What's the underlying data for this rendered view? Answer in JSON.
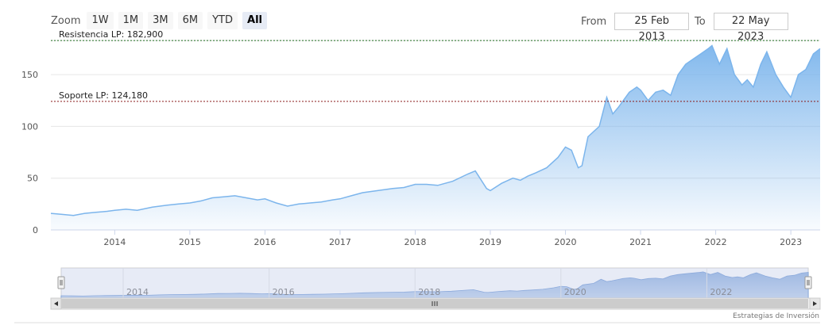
{
  "toolbar": {
    "zoom_label": "Zoom",
    "buttons": [
      "1W",
      "1M",
      "3M",
      "6M",
      "YTD",
      "All"
    ],
    "active": "All"
  },
  "range": {
    "from_label": "From",
    "from_value": "25 Feb 2013",
    "to_label": "To",
    "to_value": "22 May 2023"
  },
  "credit": "Estrategias de Inversión",
  "colors": {
    "series_line": "#7cb5ec",
    "area_top": "#7cb5ec",
    "plot_line_resistance": "#1e6b1e",
    "plot_line_support": "#8b1a1a",
    "navigator_mask": "#c9d3ec"
  },
  "chart_data": {
    "type": "area",
    "xlim": [
      2013.15,
      2023.39
    ],
    "ylim": [
      0,
      183
    ],
    "yticks": [
      0,
      50,
      100,
      150
    ],
    "xticks": [
      2014,
      2015,
      2016,
      2017,
      2018,
      2019,
      2020,
      2021,
      2022,
      2023
    ],
    "navigator_xticks": [
      2014,
      2016,
      2018,
      2020,
      2022
    ],
    "grid": true,
    "legend": "none",
    "plot_lines": [
      {
        "label": "Resistencia LP: 182,900",
        "value": 182.9
      },
      {
        "label": "Soporte LP: 124,180",
        "value": 124.18
      }
    ],
    "series": [
      {
        "x": [
          2013.15,
          2013.3,
          2013.45,
          2013.6,
          2013.75,
          2013.9,
          2014.0,
          2014.15,
          2014.3,
          2014.5,
          2014.7,
          2014.85,
          2015.0,
          2015.15,
          2015.3,
          2015.45,
          2015.6,
          2015.75,
          2015.9,
          2016.0,
          2016.15,
          2016.3,
          2016.45,
          2016.6,
          2016.75,
          2016.9,
          2017.0,
          2017.15,
          2017.3,
          2017.5,
          2017.7,
          2017.85,
          2018.0,
          2018.15,
          2018.3,
          2018.5,
          2018.7,
          2018.8,
          2018.95,
          2019.0,
          2019.15,
          2019.3,
          2019.4,
          2019.5,
          2019.6,
          2019.75,
          2019.9,
          2020.0,
          2020.08,
          2020.17,
          2020.22,
          2020.3,
          2020.45,
          2020.55,
          2020.63,
          2020.7,
          2020.78,
          2020.85,
          2020.95,
          2021.0,
          2021.1,
          2021.2,
          2021.3,
          2021.4,
          2021.5,
          2021.6,
          2021.7,
          2021.8,
          2021.9,
          2021.95,
          2022.05,
          2022.15,
          2022.25,
          2022.35,
          2022.42,
          2022.5,
          2022.6,
          2022.68,
          2022.8,
          2022.9,
          2023.0,
          2023.1,
          2023.2,
          2023.3,
          2023.39
        ],
        "y": [
          16,
          15,
          14,
          16,
          17,
          18,
          19,
          20,
          19,
          22,
          24,
          25,
          26,
          28,
          31,
          32,
          33,
          31,
          29,
          30,
          26,
          23,
          25,
          26,
          27,
          29,
          30,
          33,
          36,
          38,
          40,
          41,
          44,
          44,
          43,
          47,
          54,
          57,
          40,
          38,
          45,
          50,
          48,
          52,
          55,
          60,
          70,
          80,
          77,
          60,
          62,
          90,
          100,
          128,
          112,
          118,
          126,
          133,
          138,
          135,
          125,
          133,
          135,
          130,
          150,
          160,
          165,
          170,
          175,
          178,
          160,
          175,
          150,
          140,
          145,
          138,
          160,
          172,
          150,
          138,
          128,
          150,
          155,
          170,
          175
        ]
      }
    ]
  }
}
